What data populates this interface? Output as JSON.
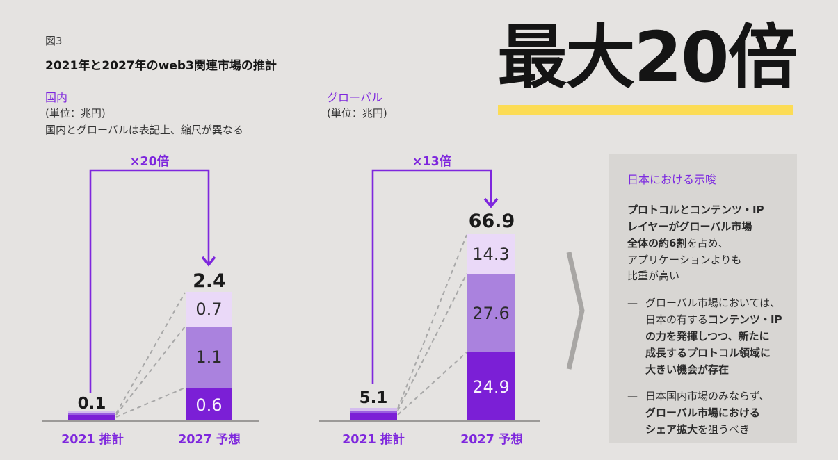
{
  "figure": {
    "label": "図3",
    "title": "2021年と2027年のweb3関連市場の推計"
  },
  "headline": {
    "text": "最大20倍"
  },
  "colors": {
    "accent_purple": "#7e27dd",
    "bar_dark_purple": "#7b1fd6",
    "bar_mid_purple": "#aa82de",
    "bar_light_purple": "#ead9f8",
    "highlight_yellow": "#fcdc55",
    "panel_background": "#d8d6d3",
    "page_background": "#e5e3e1"
  },
  "domestic": {
    "label": "国内",
    "unit": "(単位：兆円)",
    "note": "国内とグローバルは表記上、縮尺が異なる",
    "multiplier": "×20倍",
    "bars": {
      "y2021": {
        "xlabel": "2021 推計",
        "total": "0.1"
      },
      "y2027": {
        "xlabel": "2027 予想",
        "total": "2.4",
        "segments": [
          "0.7",
          "1.1",
          "0.6"
        ]
      }
    }
  },
  "global": {
    "label": "グローバル",
    "unit": "(単位：兆円)",
    "multiplier": "×13倍",
    "bars": {
      "y2021": {
        "xlabel": "2021 推計",
        "total": "5.1"
      },
      "y2027": {
        "xlabel": "2027 予想",
        "total": "66.9",
        "segments": [
          "14.3",
          "27.6",
          "24.9"
        ]
      }
    }
  },
  "panel": {
    "title": "日本における示唆",
    "intro": [
      {
        "t": "プロトコルとコンテンツ・IP\nレイヤーがグローバル市場\n全体の約6割",
        "b": true
      },
      {
        "t": "を占め、\nアプリケーションよりも\n比重が高い",
        "b": false
      }
    ],
    "bullets": [
      {
        "runs": [
          {
            "t": "グローバル市場においては、\n日本の有する",
            "b": false
          },
          {
            "t": "コンテンツ・IP\nの力を発揮しつつ、新たに\n成長するプロトコル領域に\n大きい機会が存在",
            "b": true
          }
        ]
      },
      {
        "runs": [
          {
            "t": "日本国内市場のみならず、\n",
            "b": false
          },
          {
            "t": "グローバル市場における\nシェア拡大",
            "b": true
          },
          {
            "t": "を狙うべき",
            "b": false
          }
        ]
      }
    ]
  },
  "chart_data": [
    {
      "type": "bar",
      "stacked": true,
      "group": "国内",
      "unit": "兆円",
      "categories": [
        "2021 推計",
        "2027 予想"
      ],
      "totals": [
        0.1,
        2.4
      ],
      "segments_2027_top_to_bottom": [
        0.7,
        1.1,
        0.6
      ],
      "annotation": "×20倍",
      "ylim": [
        0,
        2.6
      ],
      "grid": false,
      "note": "国内とグローバルは表記上、縮尺が異なる"
    },
    {
      "type": "bar",
      "stacked": true,
      "group": "グローバル",
      "unit": "兆円",
      "categories": [
        "2021 推計",
        "2027 予想"
      ],
      "totals": [
        5.1,
        66.9
      ],
      "segments_2027_top_to_bottom": [
        14.3,
        27.6,
        24.9
      ],
      "annotation": "×13倍",
      "ylim": [
        0,
        70
      ],
      "grid": false
    }
  ]
}
